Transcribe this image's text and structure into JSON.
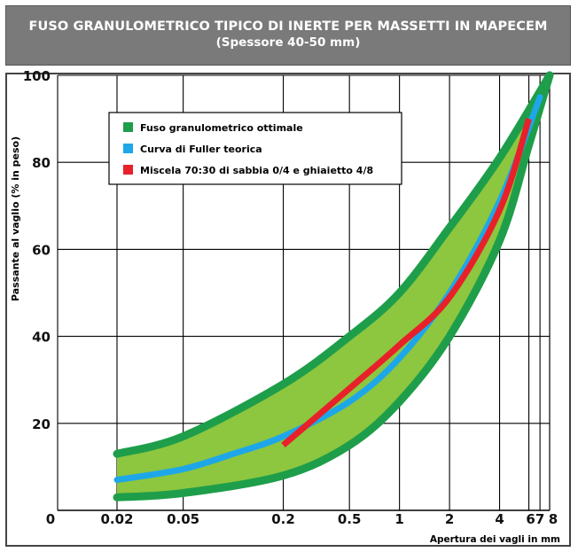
{
  "header": {
    "title": "FUSO GRANULOMETRICO TIPICO DI INERTE PER MASSETTI IN MAPECEM",
    "subtitle": "(Spessore 40-50 mm)"
  },
  "colors": {
    "header_bg": "#7a7a7a",
    "band_fill": "#8dc63f",
    "band_edge": "#1e9e4a",
    "fuller": "#1ea7e8",
    "miscela": "#e8202a"
  },
  "chart_data": {
    "type": "line",
    "xlabel": "Apertura dei vagli in mm",
    "ylabel": "Passante al vaglio (% in peso)",
    "x_scale": "log",
    "x_ticks": [
      "0",
      "0.02",
      "0.05",
      "0.2",
      "0.5",
      "1",
      "2",
      "4",
      "6",
      "7",
      "8"
    ],
    "y_ticks": [
      "20",
      "40",
      "60",
      "80",
      "100"
    ],
    "ylim": [
      0,
      100
    ],
    "grid": true,
    "legend_position": "top-left",
    "series": [
      {
        "name": "Fuso granulometrico ottimale",
        "kind": "band",
        "upper": [
          [
            0.02,
            13
          ],
          [
            0.05,
            17
          ],
          [
            0.2,
            29
          ],
          [
            0.5,
            40
          ],
          [
            1,
            50
          ],
          [
            2,
            65
          ],
          [
            4,
            81
          ],
          [
            8,
            100
          ]
        ],
        "lower": [
          [
            0.02,
            3
          ],
          [
            0.05,
            4
          ],
          [
            0.2,
            8
          ],
          [
            0.5,
            15
          ],
          [
            1,
            25
          ],
          [
            2,
            40
          ],
          [
            4,
            62
          ],
          [
            6,
            84
          ],
          [
            8,
            100
          ]
        ]
      },
      {
        "name": "Curva di Fuller teorica",
        "kind": "line",
        "points": [
          [
            0.02,
            7
          ],
          [
            0.05,
            9.5
          ],
          [
            0.1,
            13
          ],
          [
            0.2,
            17
          ],
          [
            0.5,
            25
          ],
          [
            1,
            35
          ],
          [
            2,
            50
          ],
          [
            4,
            71
          ],
          [
            7,
            95
          ]
        ]
      },
      {
        "name": "Miscela 70:30 di sabbia 0/4 e ghiaietto 4/8",
        "kind": "line",
        "points": [
          [
            0.2,
            15
          ],
          [
            0.5,
            28
          ],
          [
            1,
            38
          ],
          [
            2,
            49
          ],
          [
            4,
            69
          ],
          [
            6,
            90
          ]
        ]
      }
    ]
  }
}
